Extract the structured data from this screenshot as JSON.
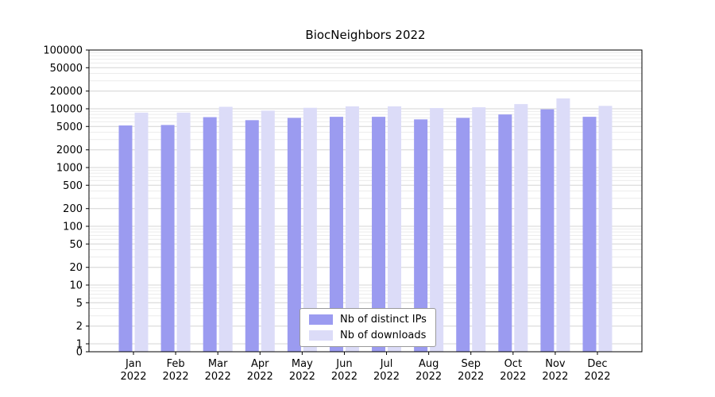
{
  "chart_data": {
    "type": "bar",
    "title": "BiocNeighbors 2022",
    "categories": [
      "Jan",
      "Feb",
      "Mar",
      "Apr",
      "May",
      "Jun",
      "Jul",
      "Aug",
      "Sep",
      "Oct",
      "Nov",
      "Dec"
    ],
    "year": "2022",
    "series": [
      {
        "name": "Nb of distinct IPs",
        "color": "#9b9bf0",
        "values": [
          5200,
          5300,
          7200,
          6400,
          7000,
          7300,
          7300,
          6600,
          7000,
          8000,
          9800,
          7300
        ]
      },
      {
        "name": "Nb of downloads",
        "color": "#dcdcf8",
        "values": [
          8600,
          8600,
          10800,
          9300,
          10400,
          11000,
          11000,
          10300,
          10600,
          12000,
          15000,
          11200
        ]
      }
    ],
    "yscale": "symlog",
    "yticks": [
      0,
      1,
      2,
      5,
      10,
      20,
      50,
      100,
      200,
      500,
      1000,
      2000,
      5000,
      10000,
      20000,
      50000,
      100000
    ],
    "ylim": [
      0,
      100000
    ],
    "xlabel": "",
    "ylabel": "",
    "grid": true,
    "legend_position": "lower center"
  }
}
